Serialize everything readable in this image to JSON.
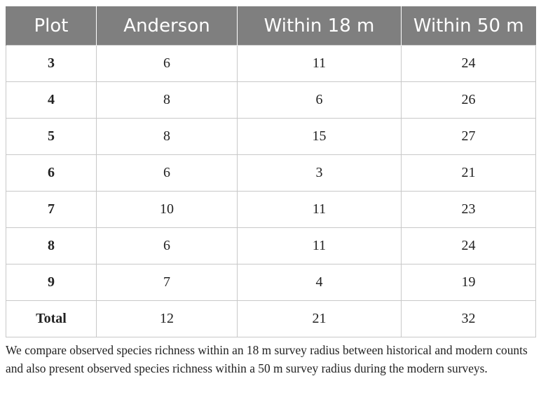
{
  "table": {
    "headers": [
      "Plot",
      "Anderson",
      "Within 18 m",
      "Within 50 m"
    ],
    "rows": [
      [
        "3",
        "6",
        "11",
        "24"
      ],
      [
        "4",
        "8",
        "6",
        "26"
      ],
      [
        "5",
        "8",
        "15",
        "27"
      ],
      [
        "6",
        "6",
        "3",
        "21"
      ],
      [
        "7",
        "10",
        "11",
        "23"
      ],
      [
        "8",
        "6",
        "11",
        "24"
      ],
      [
        "9",
        "7",
        "4",
        "19"
      ],
      [
        "Total",
        "12",
        "21",
        "32"
      ]
    ]
  },
  "caption": "We compare observed species richness within an 18 m survey radius between historical and modern counts and also present observed species richness within a 50 m survey radius during the modern surveys."
}
